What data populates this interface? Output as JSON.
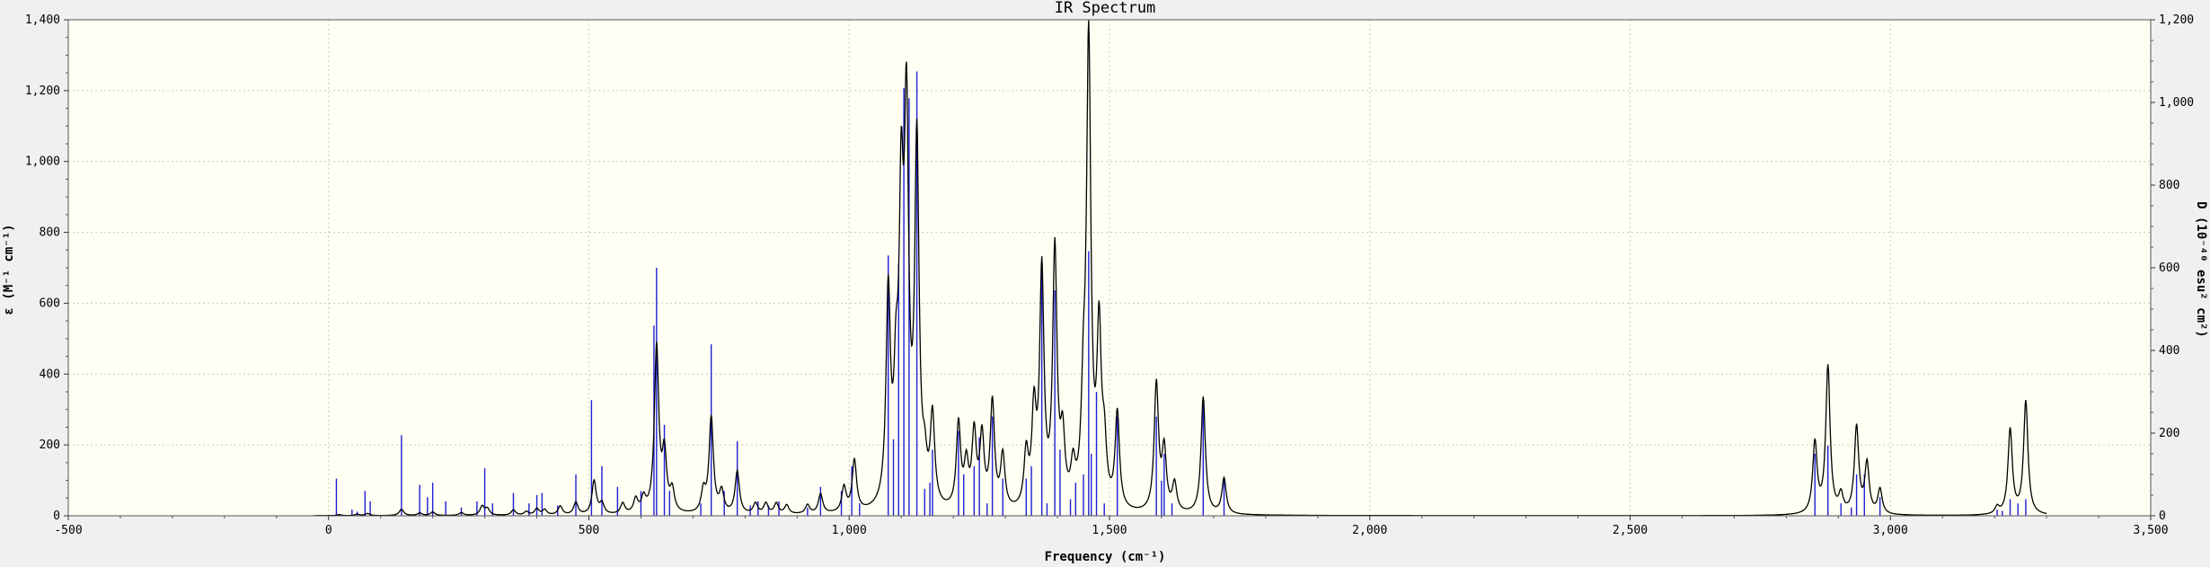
{
  "chart_data": {
    "type": "line",
    "title": "IR Spectrum",
    "xlabel": "Frequency (cm⁻¹)",
    "ylabel_left": "ε (M⁻¹ cm⁻¹)",
    "ylabel_right": "D (10⁻⁴⁰ esu² cm²)",
    "xlim": [
      -500,
      3500
    ],
    "ylim_left": [
      0,
      1400
    ],
    "ylim_right": [
      0,
      1200
    ],
    "x_ticks": [
      -500,
      0,
      500,
      1000,
      1500,
      2000,
      2500,
      3000,
      3500
    ],
    "x_tick_labels": [
      "-500",
      "0",
      "500",
      "1,000",
      "1,500",
      "2,000",
      "2,500",
      "3,000",
      "3,500"
    ],
    "y_left_ticks": [
      0,
      200,
      400,
      600,
      800,
      1000,
      1200,
      1400
    ],
    "y_left_tick_labels": [
      "0",
      "200",
      "400",
      "600",
      "800",
      "1,000",
      "1,200",
      "1,400"
    ],
    "y_right_ticks": [
      0,
      200,
      400,
      600,
      800,
      1000,
      1200
    ],
    "y_right_tick_labels": [
      "0",
      "200",
      "400",
      "600",
      "800",
      "1,000",
      "1,200"
    ],
    "grid": true,
    "colors": {
      "background": "#f0f0f0",
      "plot_background": "#fffff3",
      "grid": "#c8c8c8",
      "spectrum_line": "#000000",
      "stick": "#1f1fd6"
    },
    "series": [
      {
        "kind": "spectrum",
        "axis": "left",
        "x_range": [
          -30,
          3300
        ],
        "half_width": 5,
        "peaks": [
          {
            "x": 20,
            "y": 3
          },
          {
            "x": 55,
            "y": 4
          },
          {
            "x": 75,
            "y": 6
          },
          {
            "x": 140,
            "y": 18
          },
          {
            "x": 175,
            "y": 7
          },
          {
            "x": 200,
            "y": 10
          },
          {
            "x": 255,
            "y": 8
          },
          {
            "x": 295,
            "y": 25
          },
          {
            "x": 305,
            "y": 18
          },
          {
            "x": 355,
            "y": 15
          },
          {
            "x": 380,
            "y": 10
          },
          {
            "x": 400,
            "y": 18
          },
          {
            "x": 415,
            "y": 15
          },
          {
            "x": 445,
            "y": 25
          },
          {
            "x": 475,
            "y": 35
          },
          {
            "x": 510,
            "y": 95
          },
          {
            "x": 525,
            "y": 30
          },
          {
            "x": 565,
            "y": 30
          },
          {
            "x": 590,
            "y": 40
          },
          {
            "x": 605,
            "y": 40
          },
          {
            "x": 630,
            "y": 470
          },
          {
            "x": 645,
            "y": 160
          },
          {
            "x": 660,
            "y": 60
          },
          {
            "x": 720,
            "y": 60
          },
          {
            "x": 735,
            "y": 270
          },
          {
            "x": 755,
            "y": 60
          },
          {
            "x": 785,
            "y": 120
          },
          {
            "x": 820,
            "y": 30
          },
          {
            "x": 840,
            "y": 30
          },
          {
            "x": 860,
            "y": 30
          },
          {
            "x": 880,
            "y": 25
          },
          {
            "x": 920,
            "y": 25
          },
          {
            "x": 945,
            "y": 55
          },
          {
            "x": 990,
            "y": 70
          },
          {
            "x": 1010,
            "y": 145
          },
          {
            "x": 1075,
            "y": 590
          },
          {
            "x": 1090,
            "y": 280
          },
          {
            "x": 1100,
            "y": 780
          },
          {
            "x": 1110,
            "y": 1030
          },
          {
            "x": 1130,
            "y": 1010
          },
          {
            "x": 1145,
            "y": 90
          },
          {
            "x": 1160,
            "y": 250
          },
          {
            "x": 1210,
            "y": 240
          },
          {
            "x": 1225,
            "y": 120
          },
          {
            "x": 1240,
            "y": 210
          },
          {
            "x": 1255,
            "y": 200
          },
          {
            "x": 1275,
            "y": 300
          },
          {
            "x": 1295,
            "y": 150
          },
          {
            "x": 1340,
            "y": 150
          },
          {
            "x": 1355,
            "y": 260
          },
          {
            "x": 1370,
            "y": 660
          },
          {
            "x": 1395,
            "y": 720
          },
          {
            "x": 1410,
            "y": 180
          },
          {
            "x": 1430,
            "y": 100
          },
          {
            "x": 1450,
            "y": 250
          },
          {
            "x": 1460,
            "y": 1300
          },
          {
            "x": 1480,
            "y": 480
          },
          {
            "x": 1490,
            "y": 150
          },
          {
            "x": 1515,
            "y": 270
          },
          {
            "x": 1590,
            "y": 360
          },
          {
            "x": 1605,
            "y": 170
          },
          {
            "x": 1625,
            "y": 80
          },
          {
            "x": 1680,
            "y": 330
          },
          {
            "x": 1720,
            "y": 100
          },
          {
            "x": 2855,
            "y": 200
          },
          {
            "x": 2880,
            "y": 415
          },
          {
            "x": 2905,
            "y": 50
          },
          {
            "x": 2935,
            "y": 245
          },
          {
            "x": 2955,
            "y": 140
          },
          {
            "x": 2980,
            "y": 70
          },
          {
            "x": 3205,
            "y": 20
          },
          {
            "x": 3230,
            "y": 240
          },
          {
            "x": 3260,
            "y": 320
          }
        ]
      },
      {
        "kind": "sticks",
        "axis": "right",
        "points": [
          {
            "x": 15,
            "y": 90
          },
          {
            "x": 45,
            "y": 15
          },
          {
            "x": 55,
            "y": 10
          },
          {
            "x": 70,
            "y": 60
          },
          {
            "x": 80,
            "y": 35
          },
          {
            "x": 140,
            "y": 195
          },
          {
            "x": 175,
            "y": 75
          },
          {
            "x": 190,
            "y": 45
          },
          {
            "x": 200,
            "y": 80
          },
          {
            "x": 225,
            "y": 35
          },
          {
            "x": 255,
            "y": 20
          },
          {
            "x": 285,
            "y": 35
          },
          {
            "x": 300,
            "y": 115
          },
          {
            "x": 315,
            "y": 30
          },
          {
            "x": 355,
            "y": 55
          },
          {
            "x": 385,
            "y": 30
          },
          {
            "x": 400,
            "y": 50
          },
          {
            "x": 410,
            "y": 55
          },
          {
            "x": 440,
            "y": 25
          },
          {
            "x": 475,
            "y": 100
          },
          {
            "x": 505,
            "y": 280
          },
          {
            "x": 525,
            "y": 120
          },
          {
            "x": 555,
            "y": 70
          },
          {
            "x": 600,
            "y": 60
          },
          {
            "x": 625,
            "y": 460
          },
          {
            "x": 630,
            "y": 600
          },
          {
            "x": 645,
            "y": 220
          },
          {
            "x": 655,
            "y": 60
          },
          {
            "x": 715,
            "y": 30
          },
          {
            "x": 735,
            "y": 415
          },
          {
            "x": 760,
            "y": 60
          },
          {
            "x": 785,
            "y": 180
          },
          {
            "x": 810,
            "y": 25
          },
          {
            "x": 825,
            "y": 35
          },
          {
            "x": 845,
            "y": 25
          },
          {
            "x": 865,
            "y": 35
          },
          {
            "x": 920,
            "y": 20
          },
          {
            "x": 945,
            "y": 70
          },
          {
            "x": 985,
            "y": 60
          },
          {
            "x": 1005,
            "y": 120
          },
          {
            "x": 1020,
            "y": 30
          },
          {
            "x": 1075,
            "y": 630
          },
          {
            "x": 1085,
            "y": 185
          },
          {
            "x": 1095,
            "y": 610
          },
          {
            "x": 1105,
            "y": 1035
          },
          {
            "x": 1115,
            "y": 1010
          },
          {
            "x": 1130,
            "y": 1075
          },
          {
            "x": 1145,
            "y": 65
          },
          {
            "x": 1155,
            "y": 80
          },
          {
            "x": 1160,
            "y": 160
          },
          {
            "x": 1210,
            "y": 205
          },
          {
            "x": 1220,
            "y": 100
          },
          {
            "x": 1240,
            "y": 120
          },
          {
            "x": 1250,
            "y": 190
          },
          {
            "x": 1265,
            "y": 30
          },
          {
            "x": 1275,
            "y": 240
          },
          {
            "x": 1295,
            "y": 90
          },
          {
            "x": 1340,
            "y": 90
          },
          {
            "x": 1350,
            "y": 120
          },
          {
            "x": 1370,
            "y": 600
          },
          {
            "x": 1380,
            "y": 30
          },
          {
            "x": 1395,
            "y": 545
          },
          {
            "x": 1405,
            "y": 160
          },
          {
            "x": 1425,
            "y": 40
          },
          {
            "x": 1435,
            "y": 80
          },
          {
            "x": 1450,
            "y": 100
          },
          {
            "x": 1460,
            "y": 640
          },
          {
            "x": 1465,
            "y": 150
          },
          {
            "x": 1475,
            "y": 300
          },
          {
            "x": 1490,
            "y": 30
          },
          {
            "x": 1515,
            "y": 240
          },
          {
            "x": 1590,
            "y": 240
          },
          {
            "x": 1600,
            "y": 85
          },
          {
            "x": 1605,
            "y": 150
          },
          {
            "x": 1620,
            "y": 30
          },
          {
            "x": 1680,
            "y": 270
          },
          {
            "x": 1720,
            "y": 95
          },
          {
            "x": 2855,
            "y": 150
          },
          {
            "x": 2880,
            "y": 170
          },
          {
            "x": 2905,
            "y": 30
          },
          {
            "x": 2925,
            "y": 20
          },
          {
            "x": 2935,
            "y": 100
          },
          {
            "x": 2950,
            "y": 100
          },
          {
            "x": 2980,
            "y": 45
          },
          {
            "x": 3205,
            "y": 15
          },
          {
            "x": 3215,
            "y": 12
          },
          {
            "x": 3230,
            "y": 40
          },
          {
            "x": 3245,
            "y": 30
          },
          {
            "x": 3260,
            "y": 40
          }
        ]
      }
    ]
  }
}
